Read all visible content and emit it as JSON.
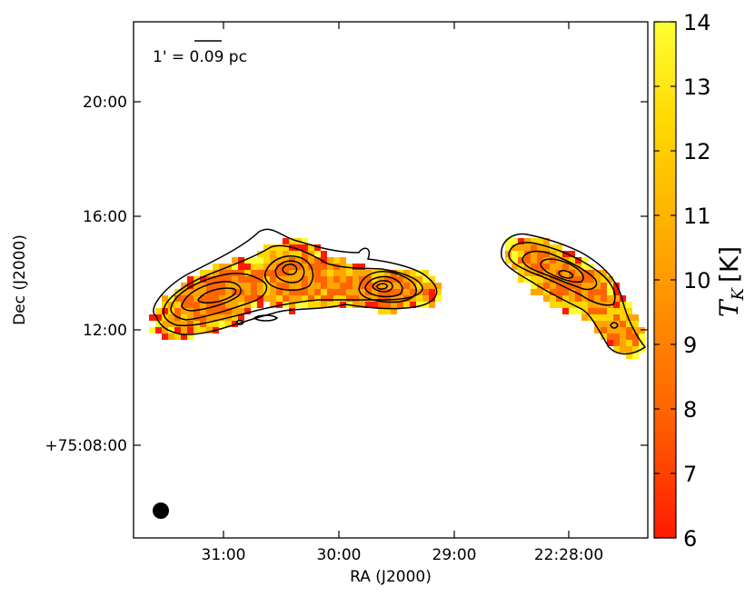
{
  "chart_data": {
    "type": "heatmap",
    "title": "",
    "xlabel": "RA (J2000)",
    "ylabel": "Dec (J2000)",
    "x_ticks": [
      "31:00",
      "30:00",
      "29:00",
      "22:28:00"
    ],
    "y_ticks": [
      "+75:08:00",
      "12:00",
      "16:00",
      "20:00"
    ],
    "scalebar": {
      "label_prefix": "1' = ",
      "label_value": "0.09",
      "label_suffix": " pc"
    },
    "beam": "filled circle",
    "colorbar": {
      "label_main": "T",
      "label_sub": "K",
      "label_unit": "[K]",
      "range": [
        6,
        14
      ],
      "ticks": [
        "6",
        "7",
        "8",
        "9",
        "10",
        "11",
        "12",
        "13",
        "14"
      ],
      "colormap": [
        "#ff1a00",
        "#ff6600",
        "#ffa500",
        "#ffd700",
        "#ffff33"
      ]
    },
    "grid": false,
    "legend": "none"
  }
}
